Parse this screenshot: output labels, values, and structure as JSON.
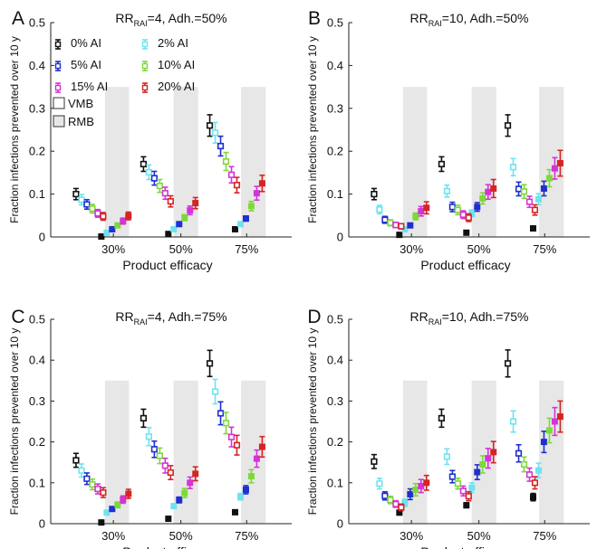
{
  "chart_data": [
    {
      "letter": "A",
      "type": "scatter",
      "title": {
        "main": "RR",
        "sub": "RAI",
        "rest": "=4, Adh.=50%"
      },
      "xlabel": "Product efficacy",
      "ylabel": "Fraction infections prevented over 10 y",
      "ylim": [
        0,
        0.5
      ],
      "yticks": [
        "0",
        "0.1",
        "0.2",
        "0.3",
        "0.4",
        "0.5"
      ],
      "categories": [
        "30%",
        "50%",
        "75%"
      ],
      "legend": true,
      "series": [
        {
          "vmb": [
            [
              0.1,
              0.013
            ],
            [
              0.17,
              0.017
            ],
            [
              0.26,
              0.025
            ]
          ],
          "rmb": [
            [
              0.001,
              0.001
            ],
            [
              0.007,
              0.002
            ],
            [
              0.018,
              0.004
            ]
          ]
        },
        {
          "vmb": [
            [
              0.087,
              0.012
            ],
            [
              0.151,
              0.017
            ],
            [
              0.243,
              0.024
            ]
          ],
          "rmb": [
            [
              0.01,
              0.002
            ],
            [
              0.018,
              0.003
            ],
            [
              0.03,
              0.005
            ]
          ]
        },
        {
          "vmb": [
            [
              0.076,
              0.011
            ],
            [
              0.137,
              0.016
            ],
            [
              0.212,
              0.023
            ]
          ],
          "rmb": [
            [
              0.018,
              0.003
            ],
            [
              0.03,
              0.004
            ],
            [
              0.043,
              0.006
            ]
          ]
        },
        {
          "vmb": [
            [
              0.066,
              0.01
            ],
            [
              0.119,
              0.015
            ],
            [
              0.176,
              0.021
            ]
          ],
          "rmb": [
            [
              0.027,
              0.005
            ],
            [
              0.045,
              0.007
            ],
            [
              0.072,
              0.011
            ]
          ]
        },
        {
          "vmb": [
            [
              0.055,
              0.009
            ],
            [
              0.102,
              0.014
            ],
            [
              0.145,
              0.019
            ]
          ],
          "rmb": [
            [
              0.037,
              0.007
            ],
            [
              0.062,
              0.01
            ],
            [
              0.102,
              0.016
            ]
          ]
        },
        {
          "vmb": [
            [
              0.048,
              0.009
            ],
            [
              0.083,
              0.013
            ],
            [
              0.121,
              0.018
            ]
          ],
          "rmb": [
            [
              0.049,
              0.009
            ],
            [
              0.079,
              0.013
            ],
            [
              0.125,
              0.019
            ]
          ]
        }
      ]
    },
    {
      "letter": "B",
      "type": "scatter",
      "title": {
        "main": "RR",
        "sub": "RAI",
        "rest": "=10, Adh.=50%"
      },
      "xlabel": "Product efficacy",
      "ylabel": "Fraction infections prevented over 10 y",
      "ylim": [
        0,
        0.5
      ],
      "yticks": [
        "0",
        "0.1",
        "0.2",
        "0.3",
        "0.4",
        "0.5"
      ],
      "categories": [
        "30%",
        "50%",
        "75%"
      ],
      "legend": false,
      "series": [
        {
          "vmb": [
            [
              0.1,
              0.013
            ],
            [
              0.17,
              0.017
            ],
            [
              0.26,
              0.025
            ]
          ],
          "rmb": [
            [
              0.005,
              0.002
            ],
            [
              0.01,
              0.003
            ],
            [
              0.02,
              0.004
            ]
          ]
        },
        {
          "vmb": [
            [
              0.064,
              0.01
            ],
            [
              0.107,
              0.014
            ],
            [
              0.163,
              0.02
            ]
          ],
          "rmb": [
            [
              0.018,
              0.004
            ],
            [
              0.055,
              0.008
            ],
            [
              0.088,
              0.013
            ]
          ]
        },
        {
          "vmb": [
            [
              0.04,
              0.008
            ],
            [
              0.07,
              0.011
            ],
            [
              0.112,
              0.016
            ]
          ],
          "rmb": [
            [
              0.027,
              0.005
            ],
            [
              0.07,
              0.01
            ],
            [
              0.113,
              0.017
            ]
          ]
        },
        {
          "vmb": [
            [
              0.033,
              0.007
            ],
            [
              0.063,
              0.011
            ],
            [
              0.106,
              0.016
            ]
          ],
          "rmb": [
            [
              0.048,
              0.008
            ],
            [
              0.09,
              0.013
            ],
            [
              0.137,
              0.02
            ]
          ]
        },
        {
          "vmb": [
            [
              0.028,
              0.006
            ],
            [
              0.052,
              0.009
            ],
            [
              0.082,
              0.013
            ]
          ],
          "rmb": [
            [
              0.06,
              0.011
            ],
            [
              0.105,
              0.017
            ],
            [
              0.16,
              0.025
            ]
          ]
        },
        {
          "vmb": [
            [
              0.025,
              0.006
            ],
            [
              0.045,
              0.009
            ],
            [
              0.063,
              0.012
            ]
          ],
          "rmb": [
            [
              0.068,
              0.014
            ],
            [
              0.113,
              0.021
            ],
            [
              0.172,
              0.03
            ]
          ]
        }
      ]
    },
    {
      "letter": "C",
      "type": "scatter",
      "title": {
        "main": "RR",
        "sub": "RAI",
        "rest": "=4, Adh.=75%"
      },
      "xlabel": "Product efficacy",
      "ylabel": "Fraction infections prevented over 10 y",
      "ylim": [
        0,
        0.5
      ],
      "yticks": [
        "0",
        "0.1",
        "0.2",
        "0.3",
        "0.4",
        "0.5"
      ],
      "categories": [
        "30%",
        "50%",
        "75%"
      ],
      "legend": false,
      "series": [
        {
          "vmb": [
            [
              0.155,
              0.017
            ],
            [
              0.258,
              0.022
            ],
            [
              0.392,
              0.032
            ]
          ],
          "rmb": [
            [
              0.003,
              0.001
            ],
            [
              0.012,
              0.003
            ],
            [
              0.028,
              0.005
            ]
          ]
        },
        {
          "vmb": [
            [
              0.13,
              0.016
            ],
            [
              0.213,
              0.022
            ],
            [
              0.323,
              0.03
            ]
          ],
          "rmb": [
            [
              0.027,
              0.004
            ],
            [
              0.043,
              0.005
            ],
            [
              0.066,
              0.008
            ]
          ]
        },
        {
          "vmb": [
            [
              0.11,
              0.014
            ],
            [
              0.182,
              0.02
            ],
            [
              0.27,
              0.028
            ]
          ],
          "rmb": [
            [
              0.036,
              0.005
            ],
            [
              0.058,
              0.007
            ],
            [
              0.083,
              0.01
            ]
          ]
        },
        {
          "vmb": [
            [
              0.096,
              0.013
            ],
            [
              0.166,
              0.019
            ],
            [
              0.246,
              0.026
            ]
          ],
          "rmb": [
            [
              0.046,
              0.007
            ],
            [
              0.075,
              0.011
            ],
            [
              0.116,
              0.016
            ]
          ]
        },
        {
          "vmb": [
            [
              0.085,
              0.012
            ],
            [
              0.142,
              0.018
            ],
            [
              0.212,
              0.024
            ]
          ],
          "rmb": [
            [
              0.059,
              0.009
            ],
            [
              0.1,
              0.014
            ],
            [
              0.159,
              0.021
            ]
          ]
        },
        {
          "vmb": [
            [
              0.076,
              0.012
            ],
            [
              0.125,
              0.017
            ],
            [
              0.192,
              0.024
            ]
          ],
          "rmb": [
            [
              0.073,
              0.011
            ],
            [
              0.122,
              0.017
            ],
            [
              0.188,
              0.025
            ]
          ]
        }
      ]
    },
    {
      "letter": "D",
      "type": "scatter",
      "title": {
        "main": "RR",
        "sub": "RAI",
        "rest": "=10, Adh.=75%"
      },
      "xlabel": "Product efficacy",
      "ylabel": "Fraction infections prevented over 10 y",
      "ylim": [
        0,
        0.5
      ],
      "yticks": [
        "0",
        "0.1",
        "0.2",
        "0.3",
        "0.4",
        "0.5"
      ],
      "categories": [
        "30%",
        "50%",
        "75%"
      ],
      "legend": false,
      "series": [
        {
          "vmb": [
            [
              0.152,
              0.017
            ],
            [
              0.258,
              0.022
            ],
            [
              0.392,
              0.033
            ]
          ],
          "rmb": [
            [
              0.027,
              0.004
            ],
            [
              0.045,
              0.006
            ],
            [
              0.065,
              0.009
            ]
          ]
        },
        {
          "vmb": [
            [
              0.098,
              0.013
            ],
            [
              0.164,
              0.019
            ],
            [
              0.25,
              0.026
            ]
          ],
          "rmb": [
            [
              0.051,
              0.009
            ],
            [
              0.088,
              0.012
            ],
            [
              0.13,
              0.018
            ]
          ]
        },
        {
          "vmb": [
            [
              0.068,
              0.01
            ],
            [
              0.115,
              0.015
            ],
            [
              0.172,
              0.021
            ]
          ],
          "rmb": [
            [
              0.072,
              0.013
            ],
            [
              0.126,
              0.018
            ],
            [
              0.2,
              0.026
            ]
          ]
        },
        {
          "vmb": [
            [
              0.058,
              0.009
            ],
            [
              0.098,
              0.013
            ],
            [
              0.145,
              0.018
            ]
          ],
          "rmb": [
            [
              0.083,
              0.015
            ],
            [
              0.145,
              0.021
            ],
            [
              0.228,
              0.03
            ]
          ]
        },
        {
          "vmb": [
            [
              0.048,
              0.008
            ],
            [
              0.08,
              0.012
            ],
            [
              0.12,
              0.016
            ]
          ],
          "rmb": [
            [
              0.092,
              0.016
            ],
            [
              0.16,
              0.024
            ],
            [
              0.25,
              0.034
            ]
          ]
        },
        {
          "vmb": [
            [
              0.04,
              0.008
            ],
            [
              0.067,
              0.011
            ],
            [
              0.1,
              0.015
            ]
          ],
          "rmb": [
            [
              0.1,
              0.018
            ],
            [
              0.175,
              0.026
            ],
            [
              0.262,
              0.038
            ]
          ]
        }
      ]
    }
  ],
  "legend": {
    "entries": [
      {
        "label": "0% AI",
        "color": "#111111"
      },
      {
        "label": "2% AI",
        "color": "#6fe3f0"
      },
      {
        "label": "5% AI",
        "color": "#1f2fd0"
      },
      {
        "label": "10% AI",
        "color": "#7fd83a"
      },
      {
        "label": "15% AI",
        "color": "#d633d6"
      },
      {
        "label": "20% AI",
        "color": "#d42525"
      }
    ],
    "vmb_label": "VMB",
    "rmb_label": "RMB"
  },
  "colors": {
    "series": [
      "#111111",
      "#6fe3f0",
      "#1f2fd0",
      "#7fd83a",
      "#d633d6",
      "#d42525"
    ],
    "shade": "#e7e7e7"
  }
}
